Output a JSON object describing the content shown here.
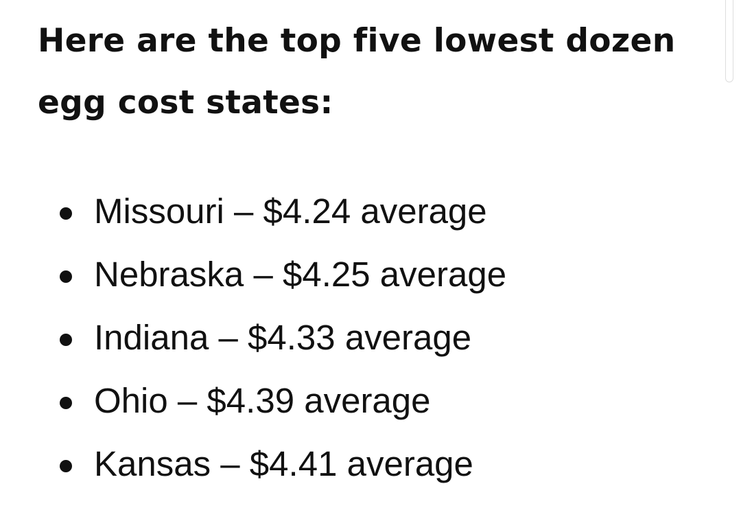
{
  "heading": "Here are the top five lowest dozen egg cost states:",
  "list": [
    "Missouri – $4.24 average",
    "Nebraska – $4.25 average",
    "Indiana – $4.33 average",
    "Ohio – $4.39 average",
    "Kansas – $4.41 average"
  ]
}
